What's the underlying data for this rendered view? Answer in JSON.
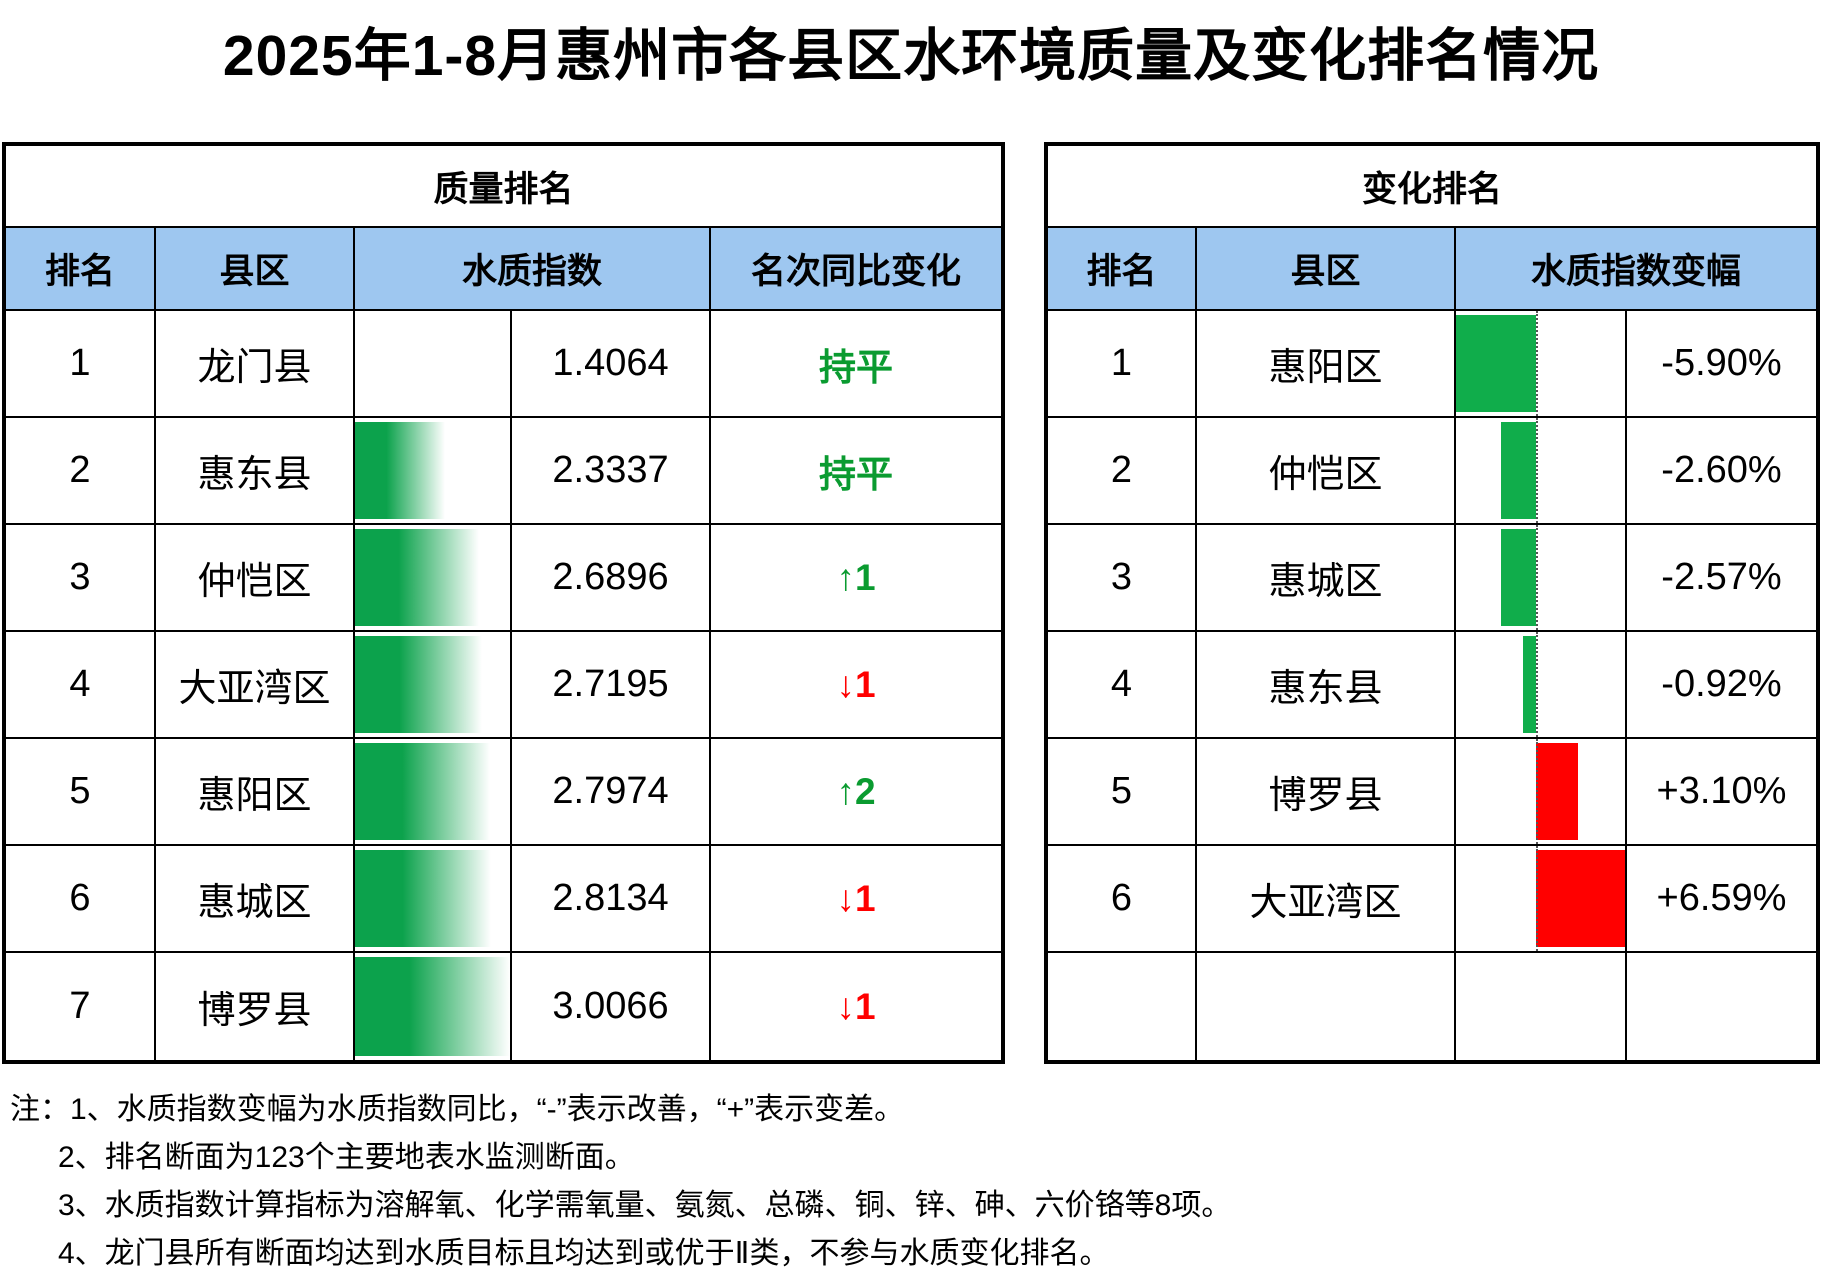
{
  "title": "2025年1-8月惠州市各县区水环境质量及变化排名情况",
  "colors": {
    "header_blue": "#9ec7f0",
    "bar_gradient_green": "#0ca24c",
    "bar_solid_green": "#10ad4b",
    "bar_solid_red": "#ff0000",
    "text_green": "#0a9b30",
    "text_red": "#ff0000"
  },
  "quality_table": {
    "group_header": "质量排名",
    "columns": {
      "rank": "排名",
      "district": "县区",
      "index": "水质指数",
      "rank_change": "名次同比变化"
    },
    "rows": [
      {
        "rank": "1",
        "district": "龙门县",
        "index_value": 1.4064,
        "index_label": "1.4064",
        "change_label": "持平",
        "change_dir": "flat"
      },
      {
        "rank": "2",
        "district": "惠东县",
        "index_value": 2.3337,
        "index_label": "2.3337",
        "change_label": "持平",
        "change_dir": "flat"
      },
      {
        "rank": "3",
        "district": "仲恺区",
        "index_value": 2.6896,
        "index_label": "2.6896",
        "change_label": "↑1",
        "change_dir": "up"
      },
      {
        "rank": "4",
        "district": "大亚湾区",
        "index_value": 2.7195,
        "index_label": "2.7195",
        "change_label": "↓1",
        "change_dir": "down"
      },
      {
        "rank": "5",
        "district": "惠阳区",
        "index_value": 2.7974,
        "index_label": "2.7974",
        "change_label": "↑2",
        "change_dir": "up"
      },
      {
        "rank": "6",
        "district": "惠城区",
        "index_value": 2.8134,
        "index_label": "2.8134",
        "change_label": "↓1",
        "change_dir": "down"
      },
      {
        "rank": "7",
        "district": "博罗县",
        "index_value": 3.0066,
        "index_label": "3.0066",
        "change_label": "↓1",
        "change_dir": "down"
      }
    ]
  },
  "change_table": {
    "group_header": "变化排名",
    "columns": {
      "rank": "排名",
      "district": "县区",
      "index_change": "水质指数变幅"
    },
    "rows": [
      {
        "rank": "1",
        "district": "惠阳区",
        "pct": -5.9,
        "pct_label": "-5.90%"
      },
      {
        "rank": "2",
        "district": "仲恺区",
        "pct": -2.6,
        "pct_label": "-2.60%"
      },
      {
        "rank": "3",
        "district": "惠城区",
        "pct": -2.57,
        "pct_label": "-2.57%"
      },
      {
        "rank": "4",
        "district": "惠东县",
        "pct": -0.92,
        "pct_label": "-0.92%"
      },
      {
        "rank": "5",
        "district": "博罗县",
        "pct": 3.1,
        "pct_label": "+3.10%"
      },
      {
        "rank": "6",
        "district": "大亚湾区",
        "pct": 6.59,
        "pct_label": "+6.59%"
      },
      {
        "rank": "",
        "district": "",
        "pct": null,
        "pct_label": ""
      }
    ]
  },
  "notes": {
    "prefix": "注：",
    "items": [
      "1、水质指数变幅为水质指数同比，“-”表示改善，“+”表示变差。",
      "2、排名断面为123个主要地表水监测断面。",
      "3、水质指数计算指标为溶解氧、化学需氧量、氨氮、总磷、铜、锌、砷、六价铬等8项。",
      "4、龙门县所有断面均达到水质目标且均达到或优于Ⅱ类，不参与水质变化排名。"
    ]
  },
  "chart_data": [
    {
      "type": "table",
      "title": "质量排名",
      "columns": [
        "排名",
        "县区",
        "水质指数",
        "名次同比变化"
      ],
      "rows": [
        [
          "1",
          "龙门县",
          1.4064,
          "持平"
        ],
        [
          "2",
          "惠东县",
          2.3337,
          "持平"
        ],
        [
          "3",
          "仲恺区",
          2.6896,
          "↑1"
        ],
        [
          "4",
          "大亚湾区",
          2.7195,
          "↓1"
        ],
        [
          "5",
          "惠阳区",
          2.7974,
          "↑2"
        ],
        [
          "6",
          "惠城区",
          2.8134,
          "↓1"
        ],
        [
          "7",
          "博罗县",
          3.0066,
          "↓1"
        ]
      ],
      "databar_range": [
        1.4064,
        3.0066
      ]
    },
    {
      "type": "table",
      "title": "变化排名",
      "columns": [
        "排名",
        "县区",
        "水质指数变幅"
      ],
      "rows": [
        [
          "1",
          "惠阳区",
          -5.9
        ],
        [
          "2",
          "仲恺区",
          -2.6
        ],
        [
          "3",
          "惠城区",
          -2.57
        ],
        [
          "4",
          "惠东县",
          -0.92
        ],
        [
          "5",
          "博罗县",
          3.1
        ],
        [
          "6",
          "大亚湾区",
          6.59
        ]
      ],
      "databar_axis": "negative green left, positive red right"
    }
  ]
}
